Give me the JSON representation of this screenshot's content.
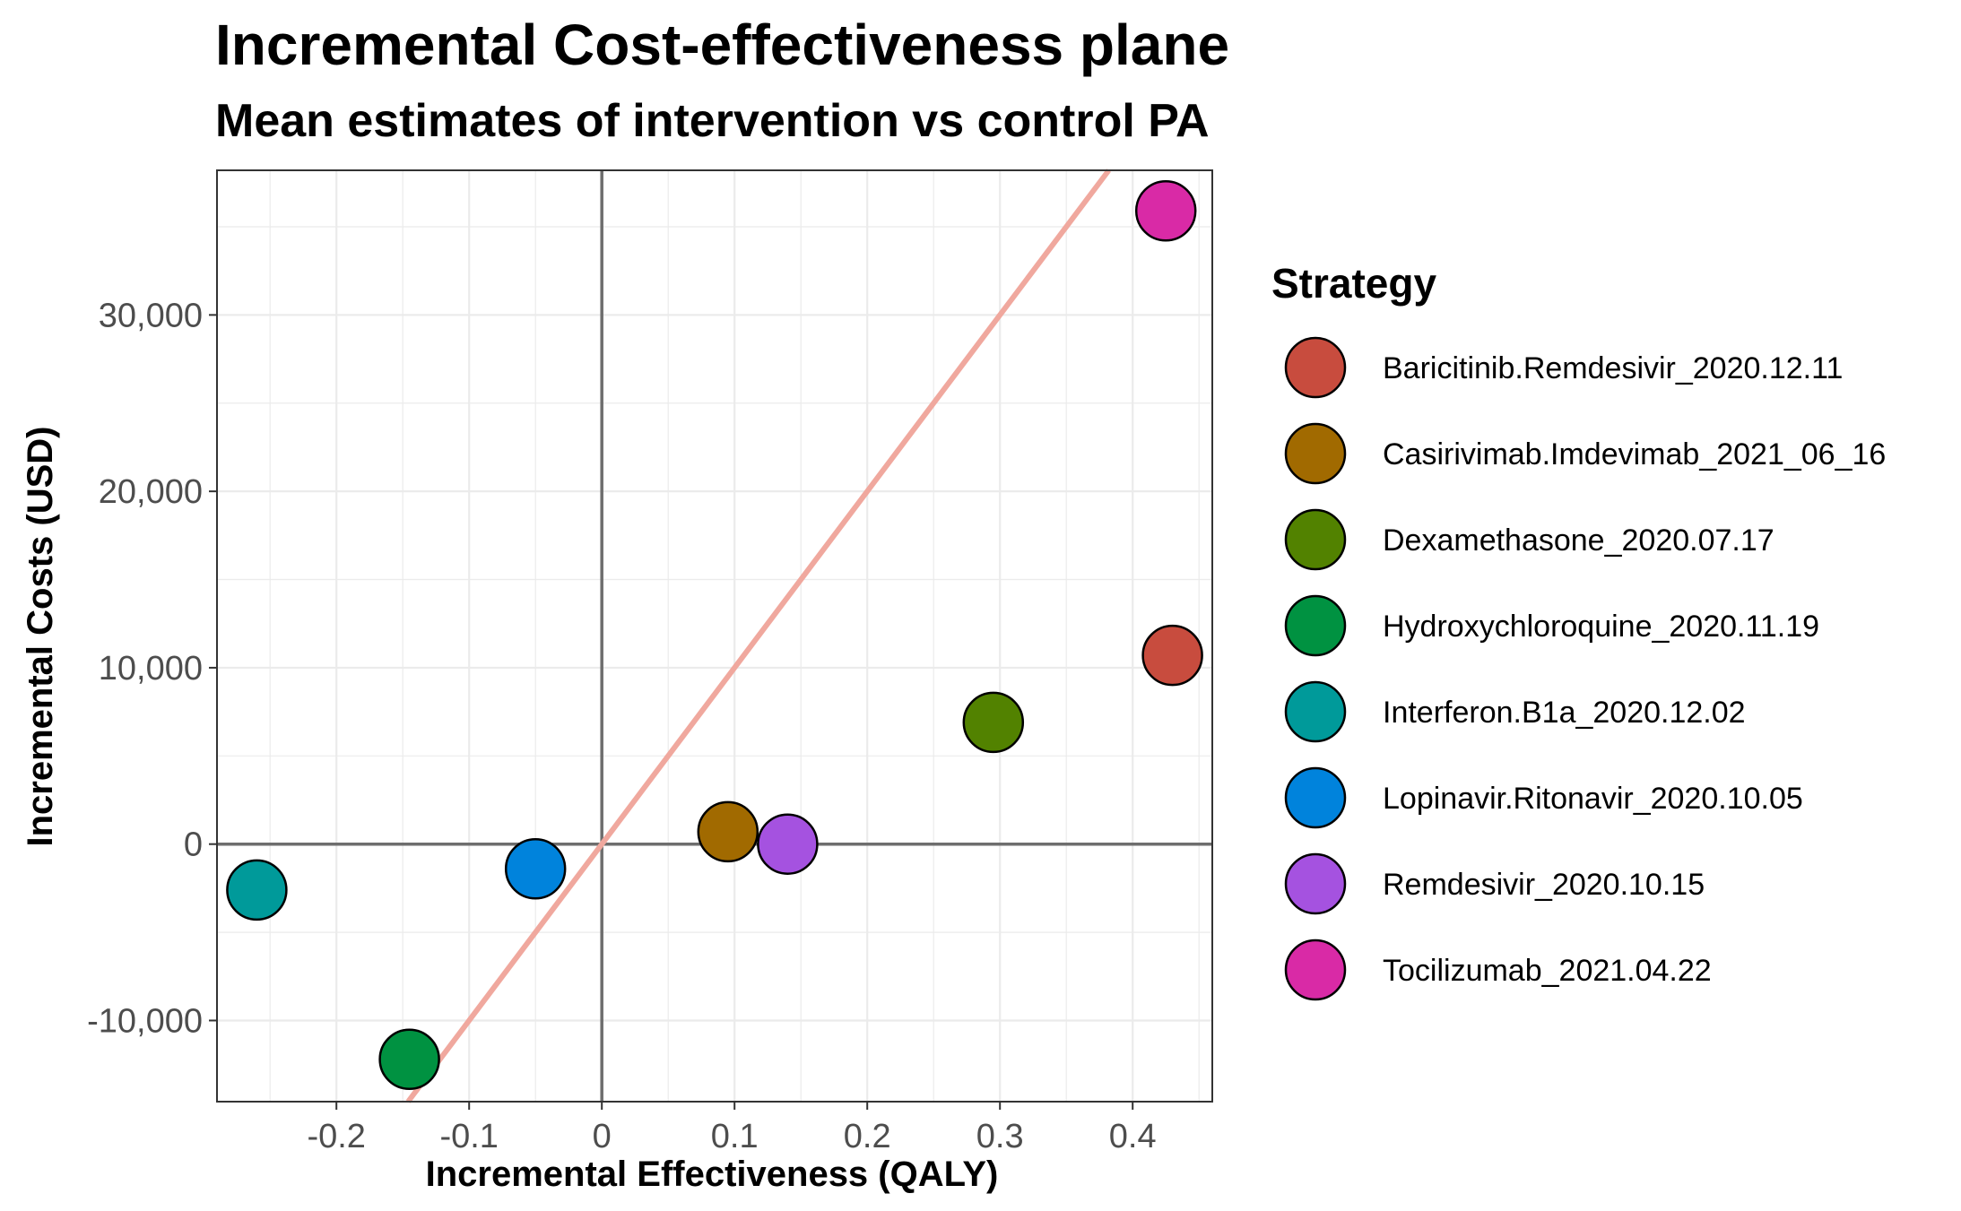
{
  "chart_data": {
    "type": "scatter",
    "title": "Incremental Cost-effectiveness plane",
    "subtitle": "Mean estimates of intervention vs control PA",
    "xlabel": "Incremental Effectiveness (QALY)",
    "ylabel": "Incremental Costs (USD)",
    "xlim": [
      -0.29,
      0.46
    ],
    "ylim": [
      -14600,
      38200
    ],
    "x_ticks": [
      -0.2,
      -0.1,
      0,
      0.1,
      0.2,
      0.3,
      0.4
    ],
    "x_tick_labels": [
      "-0.2",
      "-0.1",
      "0",
      "0.1",
      "0.2",
      "0.3",
      "0.4"
    ],
    "y_ticks": [
      -10000,
      0,
      10000,
      20000,
      30000
    ],
    "y_tick_labels": [
      "-10,000",
      "0",
      "10,000",
      "20,000",
      "30,000"
    ],
    "grid": true,
    "reference_lines": {
      "x": 0,
      "y": 0
    },
    "threshold_line": {
      "slope_usd_per_qaly": 100000,
      "color": "#F0A89E"
    },
    "legend": {
      "title": "Strategy",
      "position": "right"
    },
    "series": [
      {
        "name": "Baricitinib.Remdesivir_2020.12.11",
        "color": "#C84C3E",
        "x": 0.43,
        "y": 10700
      },
      {
        "name": "Casirivimab.Imdevimab_2021_06_16",
        "color": "#A16A00",
        "x": 0.095,
        "y": 700
      },
      {
        "name": "Dexamethasone_2020.07.17",
        "color": "#528200",
        "x": 0.295,
        "y": 6900
      },
      {
        "name": "Hydroxychloroquine_2020.11.19",
        "color": "#009241",
        "x": -0.145,
        "y": -12200
      },
      {
        "name": "Interferon.B1a_2020.12.02",
        "color": "#009A9A",
        "x": -0.26,
        "y": -2600
      },
      {
        "name": "Lopinavir.Ritonavir_2020.10.05",
        "color": "#0083DC",
        "x": -0.05,
        "y": -1400
      },
      {
        "name": "Remdesivir_2020.10.15",
        "color": "#A552E0",
        "x": 0.14,
        "y": 0
      },
      {
        "name": "Tocilizumab_2021.04.22",
        "color": "#D92AA6",
        "x": 0.425,
        "y": 35900
      }
    ]
  }
}
